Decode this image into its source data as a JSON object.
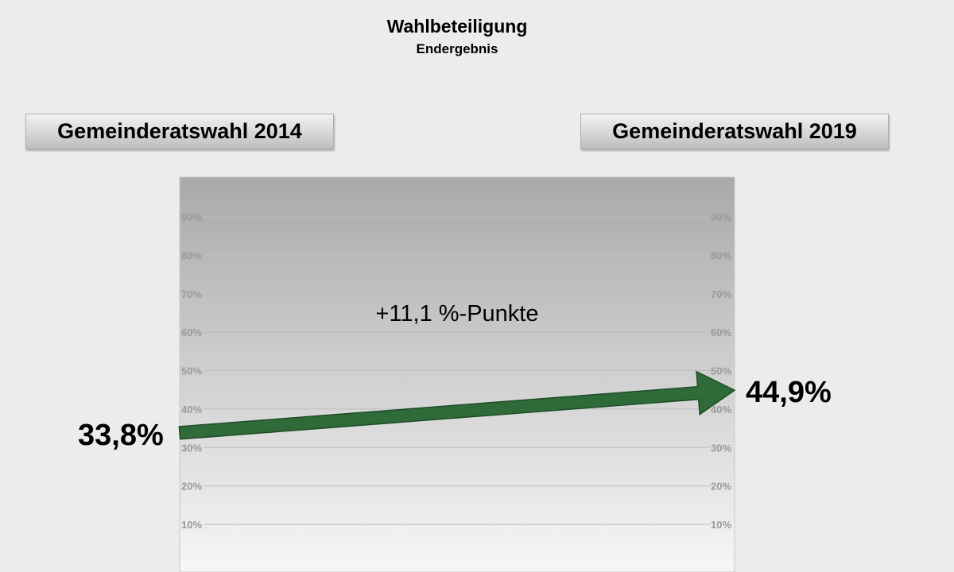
{
  "chart_data": {
    "type": "line",
    "title": "Wahlbeteiligung",
    "subtitle": "Endergebnis",
    "categories": [
      "Gemeinderatswahl 2014",
      "Gemeinderatswahl 2019"
    ],
    "values": [
      33.8,
      44.9
    ],
    "value_labels": [
      "33,8%",
      "44,9%"
    ],
    "annotation": "+11,1 %-Punkte",
    "y_ticks": [
      {
        "value": 10,
        "label": "10%"
      },
      {
        "value": 20,
        "label": "20%"
      },
      {
        "value": 30,
        "label": "30%"
      },
      {
        "value": 40,
        "label": "40%"
      },
      {
        "value": 50,
        "label": "50%"
      },
      {
        "value": 60,
        "label": "60%"
      },
      {
        "value": 70,
        "label": "70%"
      },
      {
        "value": 80,
        "label": "80%"
      },
      {
        "value": 90,
        "label": "90%"
      }
    ],
    "ylim": [
      0,
      100
    ],
    "grid": true,
    "colors": {
      "arrow": "#2e6b38",
      "arrow_dark": "#1f4d27",
      "plot_top": "#a9a9a9",
      "plot_bottom": "#f7f7f7",
      "gridline": "#bcbcbc",
      "tick_label": "#999999"
    }
  }
}
